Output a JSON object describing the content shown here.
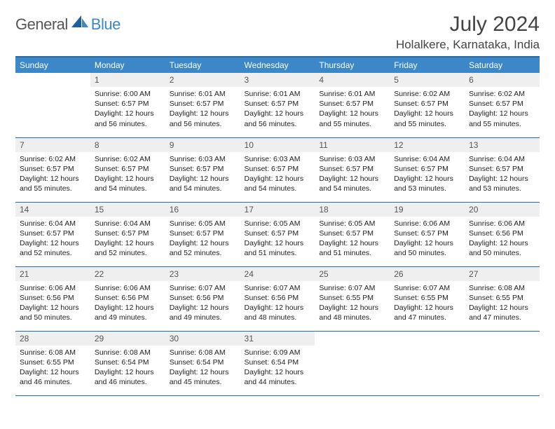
{
  "brand": {
    "part1": "General",
    "part2": "Blue"
  },
  "title": "July 2024",
  "location": "Holalkere, Karnataka, India",
  "style": {
    "header_bg": "#3b87c8",
    "header_fg": "#ffffff",
    "border_color": "#2a6aa0",
    "daynum_bg": "#efefef",
    "text_color": "#222222",
    "page_bg": "#ffffff"
  },
  "weekdays": [
    "Sunday",
    "Monday",
    "Tuesday",
    "Wednesday",
    "Thursday",
    "Friday",
    "Saturday"
  ],
  "weeks": [
    [
      {
        "num": "",
        "lines": []
      },
      {
        "num": "1",
        "lines": [
          "Sunrise: 6:00 AM",
          "Sunset: 6:57 PM",
          "Daylight: 12 hours and 56 minutes."
        ]
      },
      {
        "num": "2",
        "lines": [
          "Sunrise: 6:01 AM",
          "Sunset: 6:57 PM",
          "Daylight: 12 hours and 56 minutes."
        ]
      },
      {
        "num": "3",
        "lines": [
          "Sunrise: 6:01 AM",
          "Sunset: 6:57 PM",
          "Daylight: 12 hours and 56 minutes."
        ]
      },
      {
        "num": "4",
        "lines": [
          "Sunrise: 6:01 AM",
          "Sunset: 6:57 PM",
          "Daylight: 12 hours and 55 minutes."
        ]
      },
      {
        "num": "5",
        "lines": [
          "Sunrise: 6:02 AM",
          "Sunset: 6:57 PM",
          "Daylight: 12 hours and 55 minutes."
        ]
      },
      {
        "num": "6",
        "lines": [
          "Sunrise: 6:02 AM",
          "Sunset: 6:57 PM",
          "Daylight: 12 hours and 55 minutes."
        ]
      }
    ],
    [
      {
        "num": "7",
        "lines": [
          "Sunrise: 6:02 AM",
          "Sunset: 6:57 PM",
          "Daylight: 12 hours and 55 minutes."
        ]
      },
      {
        "num": "8",
        "lines": [
          "Sunrise: 6:02 AM",
          "Sunset: 6:57 PM",
          "Daylight: 12 hours and 54 minutes."
        ]
      },
      {
        "num": "9",
        "lines": [
          "Sunrise: 6:03 AM",
          "Sunset: 6:57 PM",
          "Daylight: 12 hours and 54 minutes."
        ]
      },
      {
        "num": "10",
        "lines": [
          "Sunrise: 6:03 AM",
          "Sunset: 6:57 PM",
          "Daylight: 12 hours and 54 minutes."
        ]
      },
      {
        "num": "11",
        "lines": [
          "Sunrise: 6:03 AM",
          "Sunset: 6:57 PM",
          "Daylight: 12 hours and 54 minutes."
        ]
      },
      {
        "num": "12",
        "lines": [
          "Sunrise: 6:04 AM",
          "Sunset: 6:57 PM",
          "Daylight: 12 hours and 53 minutes."
        ]
      },
      {
        "num": "13",
        "lines": [
          "Sunrise: 6:04 AM",
          "Sunset: 6:57 PM",
          "Daylight: 12 hours and 53 minutes."
        ]
      }
    ],
    [
      {
        "num": "14",
        "lines": [
          "Sunrise: 6:04 AM",
          "Sunset: 6:57 PM",
          "Daylight: 12 hours and 52 minutes."
        ]
      },
      {
        "num": "15",
        "lines": [
          "Sunrise: 6:04 AM",
          "Sunset: 6:57 PM",
          "Daylight: 12 hours and 52 minutes."
        ]
      },
      {
        "num": "16",
        "lines": [
          "Sunrise: 6:05 AM",
          "Sunset: 6:57 PM",
          "Daylight: 12 hours and 52 minutes."
        ]
      },
      {
        "num": "17",
        "lines": [
          "Sunrise: 6:05 AM",
          "Sunset: 6:57 PM",
          "Daylight: 12 hours and 51 minutes."
        ]
      },
      {
        "num": "18",
        "lines": [
          "Sunrise: 6:05 AM",
          "Sunset: 6:57 PM",
          "Daylight: 12 hours and 51 minutes."
        ]
      },
      {
        "num": "19",
        "lines": [
          "Sunrise: 6:06 AM",
          "Sunset: 6:57 PM",
          "Daylight: 12 hours and 50 minutes."
        ]
      },
      {
        "num": "20",
        "lines": [
          "Sunrise: 6:06 AM",
          "Sunset: 6:56 PM",
          "Daylight: 12 hours and 50 minutes."
        ]
      }
    ],
    [
      {
        "num": "21",
        "lines": [
          "Sunrise: 6:06 AM",
          "Sunset: 6:56 PM",
          "Daylight: 12 hours and 50 minutes."
        ]
      },
      {
        "num": "22",
        "lines": [
          "Sunrise: 6:06 AM",
          "Sunset: 6:56 PM",
          "Daylight: 12 hours and 49 minutes."
        ]
      },
      {
        "num": "23",
        "lines": [
          "Sunrise: 6:07 AM",
          "Sunset: 6:56 PM",
          "Daylight: 12 hours and 49 minutes."
        ]
      },
      {
        "num": "24",
        "lines": [
          "Sunrise: 6:07 AM",
          "Sunset: 6:56 PM",
          "Daylight: 12 hours and 48 minutes."
        ]
      },
      {
        "num": "25",
        "lines": [
          "Sunrise: 6:07 AM",
          "Sunset: 6:55 PM",
          "Daylight: 12 hours and 48 minutes."
        ]
      },
      {
        "num": "26",
        "lines": [
          "Sunrise: 6:07 AM",
          "Sunset: 6:55 PM",
          "Daylight: 12 hours and 47 minutes."
        ]
      },
      {
        "num": "27",
        "lines": [
          "Sunrise: 6:08 AM",
          "Sunset: 6:55 PM",
          "Daylight: 12 hours and 47 minutes."
        ]
      }
    ],
    [
      {
        "num": "28",
        "lines": [
          "Sunrise: 6:08 AM",
          "Sunset: 6:55 PM",
          "Daylight: 12 hours and 46 minutes."
        ]
      },
      {
        "num": "29",
        "lines": [
          "Sunrise: 6:08 AM",
          "Sunset: 6:54 PM",
          "Daylight: 12 hours and 46 minutes."
        ]
      },
      {
        "num": "30",
        "lines": [
          "Sunrise: 6:08 AM",
          "Sunset: 6:54 PM",
          "Daylight: 12 hours and 45 minutes."
        ]
      },
      {
        "num": "31",
        "lines": [
          "Sunrise: 6:09 AM",
          "Sunset: 6:54 PM",
          "Daylight: 12 hours and 44 minutes."
        ]
      },
      {
        "num": "",
        "lines": []
      },
      {
        "num": "",
        "lines": []
      },
      {
        "num": "",
        "lines": []
      }
    ]
  ]
}
